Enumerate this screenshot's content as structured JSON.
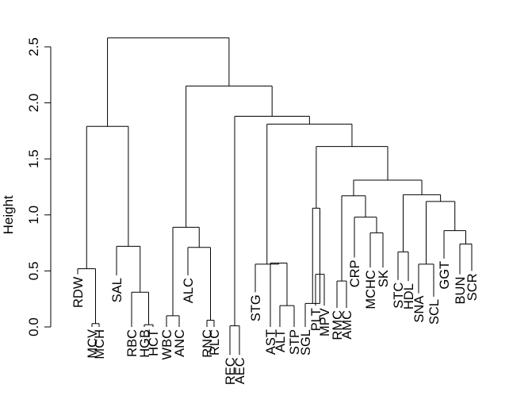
{
  "chart_data": {
    "type": "dendrogram",
    "ylabel": "Height",
    "ylim": [
      0,
      2.72
    ],
    "yticks": [
      {
        "value": 0.0,
        "label": "0.0"
      },
      {
        "value": 0.5,
        "label": "0.5"
      },
      {
        "value": 1.0,
        "label": "1.0"
      },
      {
        "value": 1.5,
        "label": "1.5"
      },
      {
        "value": 2.0,
        "label": "2.0"
      },
      {
        "value": 2.5,
        "label": "2.5"
      }
    ],
    "leaves": [
      "RDW",
      "MCV",
      "MCH",
      "SAL",
      "RBC",
      "HGB",
      "HCT",
      "WBC",
      "ANC",
      "ALC",
      "RNC",
      "RLC",
      "REC",
      "AEC",
      "STG",
      "AST",
      "ALT",
      "STP",
      "SGL",
      "PLT",
      "MPV",
      "RMC",
      "AMC",
      "CRP",
      "MCHC",
      "SK",
      "STC",
      "HDL",
      "SNA",
      "SCL",
      "GGT",
      "BUN",
      "SCR"
    ],
    "merges": [
      {
        "a": "MCV",
        "b": "MCH",
        "height": 0.03
      },
      {
        "a": "RDW",
        "b": "m1",
        "height": 0.52
      },
      {
        "a": "HCT",
        "b": "HGB",
        "height": 0.02
      },
      {
        "a": "RBC",
        "b": "m3",
        "height": 0.31
      },
      {
        "a": "SAL",
        "b": "m4",
        "height": 0.72
      },
      {
        "a": "m2",
        "b": "m5",
        "height": 1.79
      },
      {
        "a": "WBC",
        "b": "ANC",
        "height": 0.1
      },
      {
        "a": "RNC",
        "b": "RLC",
        "height": 0.06
      },
      {
        "a": "ALC",
        "b": "m8",
        "height": 0.71
      },
      {
        "a": "m7",
        "b": "m9",
        "height": 0.89
      },
      {
        "a": "REC",
        "b": "AEC",
        "height": 0.01
      },
      {
        "a": "ALT",
        "b": "STP",
        "height": 0.19
      },
      {
        "a": "AST",
        "b": "m12",
        "height": 0.57
      },
      {
        "a": "STG",
        "b": "m13",
        "height": 0.56
      },
      {
        "a": "PLT",
        "b": "MPV",
        "height": 0.47
      },
      {
        "a": "SGL",
        "b": "m15",
        "height": 0.21
      },
      {
        "a": "m16",
        "b": "m15b",
        "height": 1.06
      },
      {
        "a": "RMC",
        "b": "AMC",
        "height": 0.41
      },
      {
        "a": "MCHC",
        "b": "SK",
        "height": 0.84
      },
      {
        "a": "CRP",
        "b": "m19",
        "height": 0.98
      },
      {
        "a": "m18",
        "b": "m20",
        "height": 1.17
      },
      {
        "a": "HDL",
        "b": "STC",
        "height": 0.67
      },
      {
        "a": "SNA",
        "b": "SCL",
        "height": 0.56
      },
      {
        "a": "BUN",
        "b": "SCR",
        "height": 0.74
      },
      {
        "a": "GGT",
        "b": "m24",
        "height": 0.86
      },
      {
        "a": "m23",
        "b": "m25",
        "height": 1.12
      },
      {
        "a": "m22",
        "b": "m26",
        "height": 1.18
      },
      {
        "a": "m21",
        "b": "m27",
        "height": 1.31
      },
      {
        "a": "m17",
        "b": "m28",
        "height": 1.61
      },
      {
        "a": "m14",
        "b": "m29",
        "height": 1.81
      },
      {
        "a": "m30",
        "b": "m11",
        "height": 1.88
      },
      {
        "a": "m10",
        "b": "m31",
        "height": 2.15
      },
      {
        "a": "m6",
        "b": "m32",
        "height": 2.58
      }
    ]
  }
}
